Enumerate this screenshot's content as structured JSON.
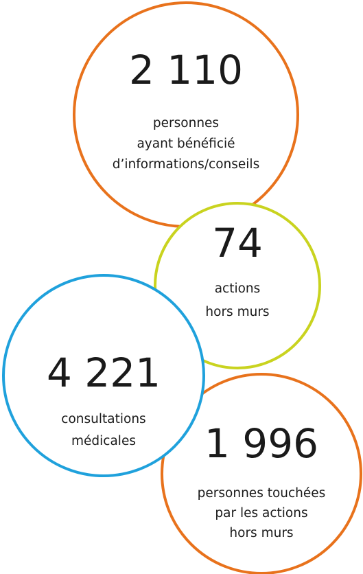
{
  "circles": [
    {
      "number": "2 110",
      "lines": [
        "personnes",
        "ayant bénéficié",
        "d’informations/conseils"
      ],
      "color": "#e8721c"
    },
    {
      "number": "74",
      "lines": [
        "actions",
        "hors murs"
      ],
      "color": "#c9d31f"
    },
    {
      "number": "1 996",
      "lines": [
        "personnes touchées",
        "par les actions",
        "hors murs"
      ],
      "color": "#e8721c"
    },
    {
      "number": "4 221",
      "lines": [
        "consultations",
        "médicales"
      ],
      "color": "#1fa1dc"
    }
  ]
}
